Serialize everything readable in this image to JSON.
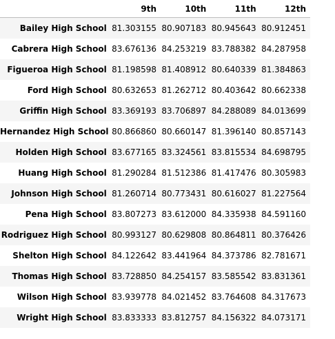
{
  "table": {
    "index_header": "",
    "columns": [
      "9th",
      "10th",
      "11th",
      "12th"
    ],
    "rows": [
      {
        "school": "Bailey High School",
        "values": [
          "81.303155",
          "80.907183",
          "80.945643",
          "80.912451"
        ]
      },
      {
        "school": "Cabrera High School",
        "values": [
          "83.676136",
          "84.253219",
          "83.788382",
          "84.287958"
        ]
      },
      {
        "school": "Figueroa High School",
        "values": [
          "81.198598",
          "81.408912",
          "80.640339",
          "81.384863"
        ]
      },
      {
        "school": "Ford High School",
        "values": [
          "80.632653",
          "81.262712",
          "80.403642",
          "80.662338"
        ]
      },
      {
        "school": "Griffin High School",
        "values": [
          "83.369193",
          "83.706897",
          "84.288089",
          "84.013699"
        ]
      },
      {
        "school": "Hernandez High School",
        "values": [
          "80.866860",
          "80.660147",
          "81.396140",
          "80.857143"
        ]
      },
      {
        "school": "Holden High School",
        "values": [
          "83.677165",
          "83.324561",
          "83.815534",
          "84.698795"
        ]
      },
      {
        "school": "Huang High School",
        "values": [
          "81.290284",
          "81.512386",
          "81.417476",
          "80.305983"
        ]
      },
      {
        "school": "Johnson High School",
        "values": [
          "81.260714",
          "80.773431",
          "80.616027",
          "81.227564"
        ]
      },
      {
        "school": "Pena High School",
        "values": [
          "83.807273",
          "83.612000",
          "84.335938",
          "84.591160"
        ]
      },
      {
        "school": "Rodriguez High School",
        "values": [
          "80.993127",
          "80.629808",
          "80.864811",
          "80.376426"
        ]
      },
      {
        "school": "Shelton High School",
        "values": [
          "84.122642",
          "83.441964",
          "84.373786",
          "82.781671"
        ]
      },
      {
        "school": "Thomas High School",
        "values": [
          "83.728850",
          "84.254157",
          "83.585542",
          "83.831361"
        ]
      },
      {
        "school": "Wilson High School",
        "values": [
          "83.939778",
          "84.021452",
          "83.764608",
          "84.317673"
        ]
      },
      {
        "school": "Wright High School",
        "values": [
          "83.833333",
          "83.812757",
          "84.156322",
          "84.073171"
        ]
      }
    ]
  }
}
